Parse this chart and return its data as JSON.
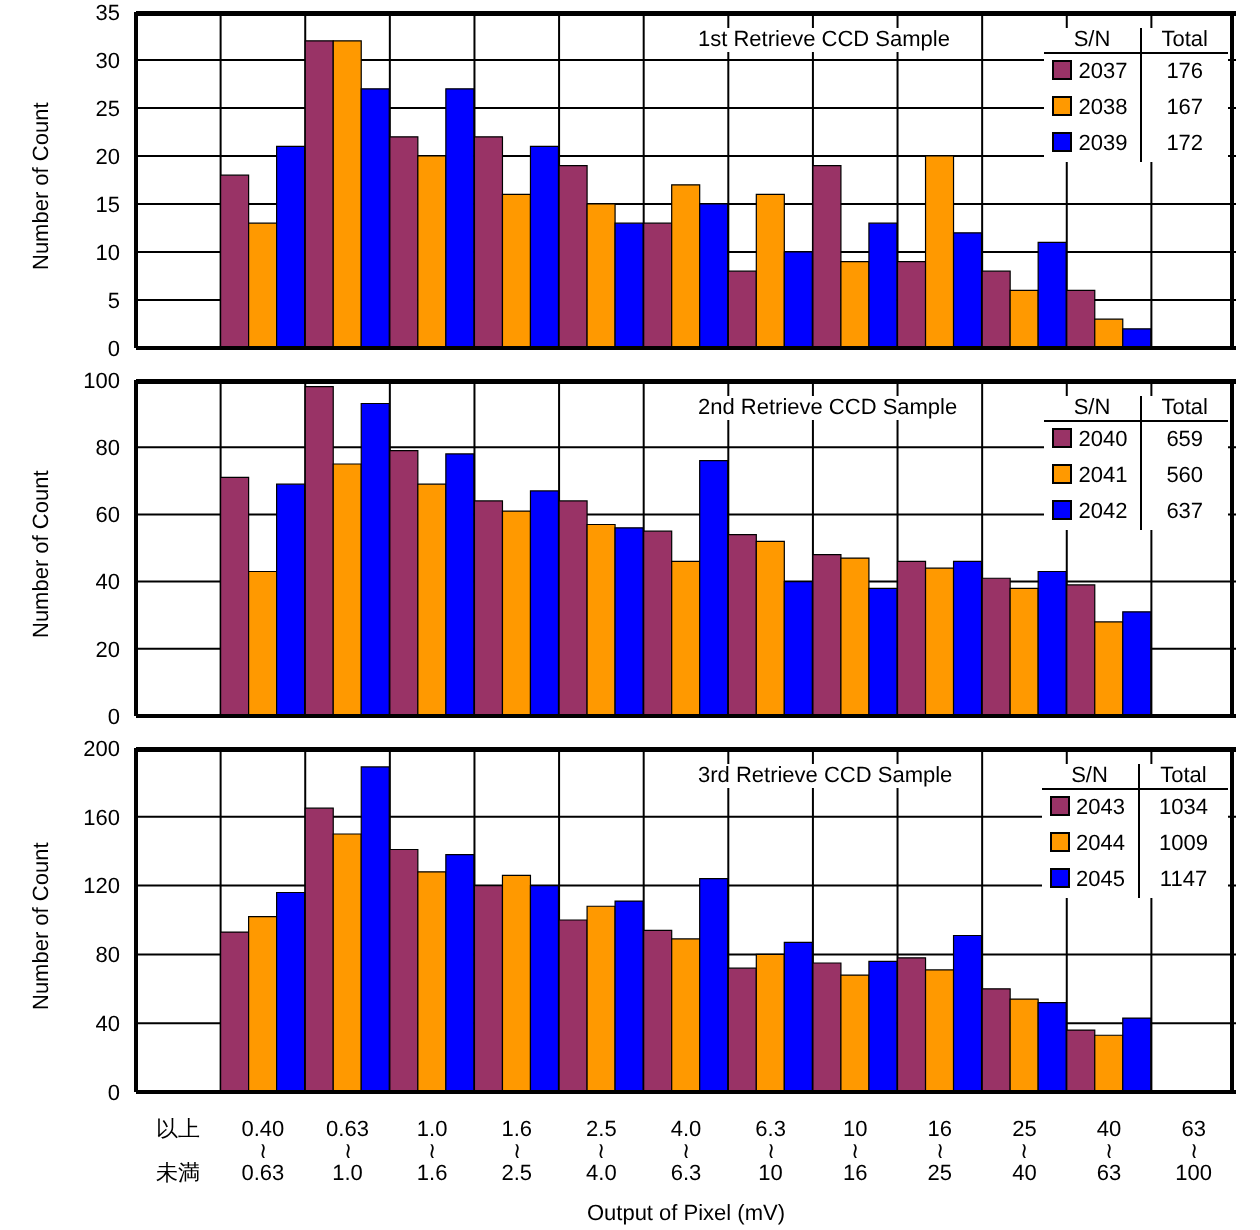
{
  "chart_data": [
    {
      "type": "bar",
      "title": "1st Retrieve CCD Sample",
      "ylabel": "Number of Count",
      "legend_title": "S/N",
      "annotations": [
        "Total",
        "176",
        "167",
        "172"
      ],
      "categories": [
        "以上未満",
        "0.40\n≀\n0.63",
        "0.63\n≀\n1.0",
        "1.0\n≀\n1.6",
        "1.6\n≀\n2.5",
        "2.5\n≀\n4.0",
        "4.0\n≀\n6.3",
        "6.3\n≀\n10",
        "10\n≀\n16",
        "16\n≀\n25",
        "25\n≀\n40",
        "40\n≀\n63",
        "63\n≀\n100"
      ],
      "series": [
        {
          "name": "2037",
          "color": "#993366",
          "values": [
            null,
            18,
            32,
            22,
            22,
            19,
            13,
            8,
            19,
            9,
            8,
            6,
            0
          ]
        },
        {
          "name": "2038",
          "color": "#ff9900",
          "values": [
            null,
            13,
            32,
            20,
            16,
            15,
            17,
            16,
            9,
            20,
            6,
            3,
            0
          ]
        },
        {
          "name": "2039",
          "color": "#0000ff",
          "values": [
            null,
            21,
            27,
            27,
            21,
            13,
            15,
            10,
            13,
            12,
            11,
            2,
            0
          ]
        }
      ],
      "ylim": [
        0,
        35
      ],
      "yticks": [
        0,
        5,
        10,
        15,
        20,
        25,
        30,
        35
      ],
      "grid": true,
      "legend": "top right",
      "tick_labels": "y"
    },
    {
      "type": "bar",
      "title": "2nd Retrieve CCD Sample",
      "ylabel": "Number of Count",
      "legend_title": "S/N",
      "annotations": [
        "Total",
        "659",
        "560",
        "637"
      ],
      "categories": [
        "以上未満",
        "0.40\n≀\n0.63",
        "0.63\n≀\n1.0",
        "1.0\n≀\n1.6",
        "1.6\n≀\n2.5",
        "2.5\n≀\n4.0",
        "4.0\n≀\n6.3",
        "6.3\n≀\n10",
        "10\n≀\n16",
        "16\n≀\n25",
        "25\n≀\n40",
        "40\n≀\n63",
        "63\n≀\n100"
      ],
      "series": [
        {
          "name": "2040",
          "color": "#993366",
          "values": [
            null,
            71,
            98,
            79,
            64,
            64,
            55,
            54,
            48,
            46,
            41,
            39,
            0
          ]
        },
        {
          "name": "2041",
          "color": "#ff9900",
          "values": [
            null,
            43,
            75,
            69,
            61,
            57,
            46,
            52,
            47,
            44,
            38,
            28,
            0
          ]
        },
        {
          "name": "2042",
          "color": "#0000ff",
          "values": [
            null,
            69,
            93,
            78,
            67,
            56,
            76,
            40,
            38,
            46,
            43,
            31,
            0
          ]
        }
      ],
      "ylim": [
        0,
        100
      ],
      "yticks": [
        0,
        20,
        40,
        60,
        80,
        100
      ],
      "grid": true,
      "legend": "top right",
      "tick_labels": "y"
    },
    {
      "type": "bar",
      "title": "3rd Retrieve CCD Sample",
      "xlabel": "Output of Pixel (mV)",
      "ylabel": "Number of Count",
      "legend_title": "S/N",
      "annotations": [
        "Total",
        "1034",
        "1009",
        "1147"
      ],
      "categories": [
        "以上未満",
        "0.40\n≀\n0.63",
        "0.63\n≀\n1.0",
        "1.0\n≀\n1.6",
        "1.6\n≀\n2.5",
        "2.5\n≀\n4.0",
        "4.0\n≀\n6.3",
        "6.3\n≀\n10",
        "10\n≀\n16",
        "16\n≀\n25",
        "25\n≀\n40",
        "40\n≀\n63",
        "63\n≀\n100"
      ],
      "series": [
        {
          "name": "2043",
          "color": "#993366",
          "values": [
            null,
            93,
            165,
            141,
            120,
            100,
            94,
            72,
            75,
            78,
            60,
            36,
            0
          ]
        },
        {
          "name": "2044",
          "color": "#ff9900",
          "values": [
            null,
            102,
            150,
            128,
            126,
            108,
            89,
            80,
            68,
            71,
            54,
            33,
            0
          ]
        },
        {
          "name": "2045",
          "color": "#0000ff",
          "values": [
            null,
            116,
            189,
            138,
            120,
            111,
            124,
            87,
            76,
            91,
            52,
            43,
            0
          ]
        }
      ],
      "ylim": [
        0,
        200
      ],
      "yticks": [
        0,
        40,
        80,
        120,
        160,
        200
      ],
      "grid": true,
      "legend": "top right"
    }
  ]
}
